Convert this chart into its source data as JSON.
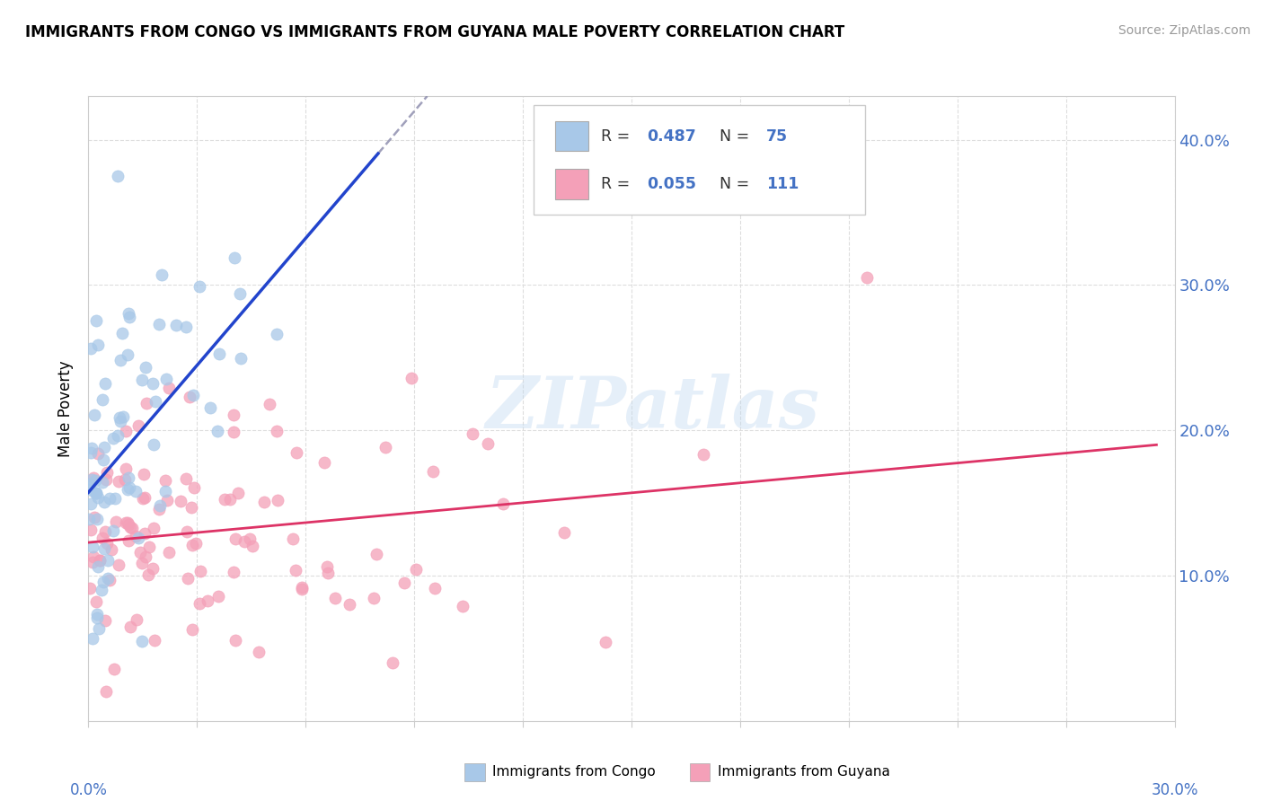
{
  "title": "IMMIGRANTS FROM CONGO VS IMMIGRANTS FROM GUYANA MALE POVERTY CORRELATION CHART",
  "source": "Source: ZipAtlas.com",
  "ylabel": "Male Poverty",
  "ytick_vals": [
    0.1,
    0.2,
    0.3,
    0.4
  ],
  "ytick_labels": [
    "10.0%",
    "20.0%",
    "30.0%",
    "40.0%"
  ],
  "xlim": [
    0.0,
    0.3
  ],
  "ylim": [
    0.0,
    0.43
  ],
  "color_congo": "#a8c8e8",
  "color_guyana": "#f4a0b8",
  "trendline_congo_color": "#2244cc",
  "trendline_guyana_color": "#dd3366",
  "dashed_color": "#8888aa",
  "grid_color": "#dddddd",
  "axis_color": "#cccccc",
  "label_color": "#4472c4",
  "legend_label1": "Immigrants from Congo",
  "legend_label2": "Immigrants from Guyana",
  "background_color": "#ffffff"
}
